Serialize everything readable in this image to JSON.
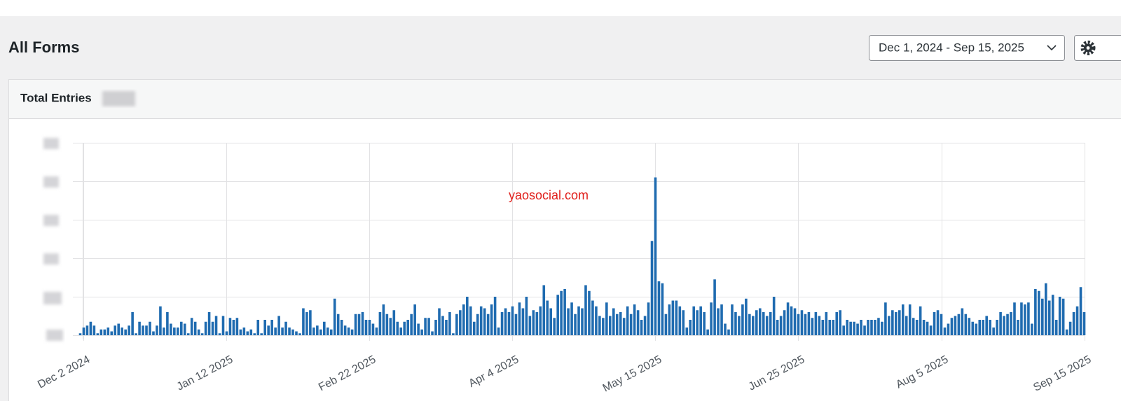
{
  "header": {
    "title": "All Forms",
    "date_range": "Dec 1, 2024 - Sep 15, 2025"
  },
  "card": {
    "title": "Total Entries"
  },
  "chart_data": {
    "type": "bar",
    "watermark": "yaosocial.com",
    "color": "#1f6bb0",
    "ylim": [
      0,
      5
    ],
    "gridlines": [
      0,
      1,
      2,
      3,
      4,
      5
    ],
    "categories": [
      null,
      "Dec 2 2024",
      null,
      null,
      null,
      null,
      null,
      null,
      null,
      null,
      null,
      null,
      null,
      null,
      null,
      null,
      null,
      null,
      null,
      null,
      null,
      null,
      null,
      null,
      null,
      null,
      null,
      null,
      null,
      null,
      null,
      null,
      null,
      null,
      null,
      null,
      null,
      null,
      null,
      null,
      null,
      null,
      "Jan 12 2025",
      null,
      null,
      null,
      null,
      null,
      null,
      null,
      null,
      null,
      null,
      null,
      null,
      null,
      null,
      null,
      null,
      null,
      null,
      null,
      null,
      null,
      null,
      null,
      null,
      null,
      null,
      null,
      null,
      null,
      null,
      null,
      null,
      null,
      null,
      null,
      null,
      null,
      null,
      null,
      null,
      "Feb 22 2025",
      null,
      null,
      null,
      null,
      null,
      null,
      null,
      null,
      null,
      null,
      null,
      null,
      null,
      null,
      null,
      null,
      null,
      null,
      null,
      null,
      null,
      null,
      null,
      null,
      null,
      null,
      null,
      null,
      null,
      null,
      null,
      null,
      null,
      null,
      null,
      null,
      null,
      null,
      null,
      null,
      "Apr 4 2025",
      null,
      null,
      null,
      null,
      null,
      null,
      null,
      null,
      null,
      null,
      null,
      null,
      null,
      null,
      null,
      null,
      null,
      null,
      null,
      null,
      null,
      null,
      null,
      null,
      null,
      null,
      null,
      null,
      null,
      null,
      null,
      null,
      null,
      null,
      null,
      null,
      null,
      null,
      null,
      null,
      "May 15 2025",
      null,
      null,
      null,
      null,
      null,
      null,
      null,
      null,
      null,
      null,
      null,
      null,
      null,
      null,
      null,
      null,
      null,
      null,
      null,
      null,
      null,
      null,
      null,
      null,
      null,
      null,
      null,
      null,
      null,
      null,
      null,
      null,
      null,
      null,
      null,
      null,
      null,
      null,
      null,
      null,
      "Jun 25 2025",
      null,
      null,
      null,
      null,
      null,
      null,
      null,
      null,
      null,
      null,
      null,
      null,
      null,
      null,
      null,
      null,
      null,
      null,
      null,
      null,
      null,
      null,
      null,
      null,
      null,
      null,
      null,
      null,
      null,
      null,
      null,
      null,
      null,
      null,
      null,
      null,
      null,
      null,
      null,
      null,
      "Aug 5 2025",
      null,
      null,
      null,
      null,
      null,
      null,
      null,
      null,
      null,
      null,
      null,
      null,
      null,
      null,
      null,
      null,
      null,
      null,
      null,
      null,
      null,
      null,
      null,
      null,
      null,
      null,
      null,
      null,
      null,
      null,
      null,
      null,
      null,
      null,
      null,
      null,
      null,
      null,
      null,
      null,
      "Sep 15 2025"
    ],
    "values": [
      0.05,
      0.2,
      0.25,
      0.35,
      0.25,
      0.05,
      0.15,
      0.15,
      0.2,
      0.1,
      0.25,
      0.3,
      0.2,
      0.15,
      0.25,
      0.6,
      0.05,
      0.35,
      0.25,
      0.25,
      0.35,
      0.1,
      0.25,
      0.75,
      0.2,
      0.6,
      0.3,
      0.2,
      0.2,
      0.35,
      0.3,
      0.05,
      0.45,
      0.35,
      0.15,
      0.05,
      0.35,
      0.6,
      0.35,
      0.5,
      0.05,
      0.5,
      0.1,
      0.45,
      0.4,
      0.45,
      0.15,
      0.2,
      0.1,
      0.15,
      0.05,
      0.4,
      0.05,
      0.4,
      0.25,
      0.4,
      0.2,
      0.5,
      0.2,
      0.35,
      0.2,
      0.15,
      0.1,
      0.05,
      0.7,
      0.6,
      0.65,
      0.2,
      0.25,
      0.15,
      0.35,
      0.2,
      0.15,
      0.95,
      0.55,
      0.4,
      0.25,
      0.2,
      0.15,
      0.55,
      0.55,
      0.6,
      0.4,
      0.4,
      0.3,
      0.2,
      0.6,
      0.8,
      0.55,
      0.45,
      0.65,
      0.35,
      0.2,
      0.35,
      0.4,
      0.55,
      0.8,
      0.3,
      0.15,
      0.45,
      0.45,
      0.1,
      0.4,
      0.7,
      0.5,
      0.4,
      0.6,
      0.05,
      0.55,
      0.65,
      0.8,
      1.0,
      0.75,
      0.35,
      0.55,
      0.75,
      0.7,
      0.55,
      0.8,
      1.0,
      0.2,
      0.6,
      0.7,
      0.6,
      0.75,
      0.55,
      0.85,
      0.7,
      1.0,
      0.5,
      0.65,
      0.6,
      0.75,
      1.3,
      0.9,
      0.7,
      0.45,
      1.05,
      1.15,
      1.2,
      0.7,
      0.85,
      0.55,
      0.75,
      0.7,
      1.3,
      1.15,
      0.9,
      0.75,
      0.5,
      0.45,
      0.85,
      0.5,
      0.7,
      0.55,
      0.6,
      0.45,
      0.75,
      0.55,
      0.8,
      0.65,
      0.4,
      0.5,
      0.85,
      2.45,
      4.1,
      1.4,
      1.35,
      0.55,
      0.8,
      0.9,
      0.9,
      0.75,
      0.65,
      0.2,
      0.4,
      0.75,
      0.65,
      0.75,
      0.6,
      0.15,
      0.85,
      1.45,
      0.7,
      0.8,
      0.3,
      0.15,
      0.8,
      0.6,
      0.5,
      0.8,
      0.95,
      0.55,
      0.5,
      0.65,
      0.7,
      0.6,
      0.5,
      0.6,
      1.0,
      0.4,
      0.5,
      0.65,
      0.85,
      0.75,
      0.7,
      0.55,
      0.65,
      0.55,
      0.6,
      0.45,
      0.6,
      0.5,
      0.4,
      0.6,
      0.4,
      0.4,
      0.6,
      0.65,
      0.25,
      0.4,
      0.35,
      0.35,
      0.3,
      0.4,
      0.25,
      0.4,
      0.4,
      0.4,
      0.45,
      0.35,
      0.85,
      0.5,
      0.65,
      0.6,
      0.65,
      0.8,
      0.5,
      0.8,
      0.45,
      0.4,
      0.75,
      0.4,
      0.35,
      0.25,
      0.6,
      0.65,
      0.55,
      0.2,
      0.3,
      0.45,
      0.5,
      0.55,
      0.7,
      0.55,
      0.45,
      0.35,
      0.3,
      0.4,
      0.4,
      0.5,
      0.4,
      0.2,
      0.4,
      0.6,
      0.5,
      0.55,
      0.6,
      0.85,
      0.4,
      0.85,
      0.8,
      0.85,
      0.3,
      1.2,
      1.15,
      0.95,
      1.35,
      0.9,
      1.05,
      0.4,
      1.0,
      0.95,
      0.15,
      0.35,
      0.6,
      0.75,
      1.25,
      0.6
    ]
  }
}
